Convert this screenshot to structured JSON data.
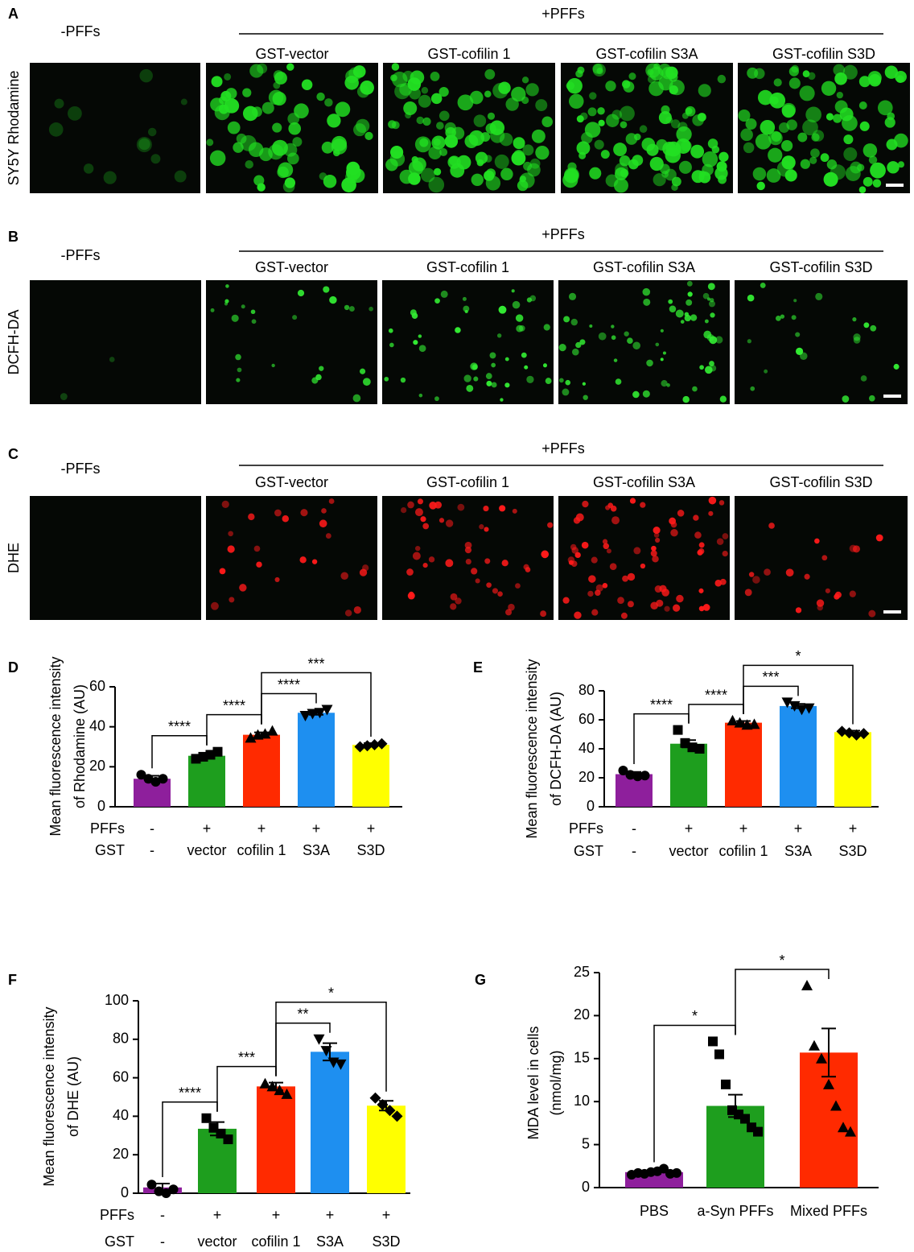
{
  "image_panels": [
    {
      "letter": "A",
      "row_label": "SY5Y Rhodamine",
      "control": "-PFFs",
      "treated": "+PFFs",
      "columns": [
        "GST-vector",
        "GST-cofilin 1",
        "GST-cofilin S3A",
        "GST-cofilin S3D"
      ],
      "color": "#22e022"
    },
    {
      "letter": "B",
      "row_label": "DCFH-DA",
      "control": "-PFFs",
      "treated": "+PFFs",
      "columns": [
        "GST-vector",
        "GST-cofilin 1",
        "GST-cofilin S3A",
        "GST-cofilin S3D"
      ],
      "color": "#33ee33"
    },
    {
      "letter": "C",
      "row_label": "DHE",
      "control": "-PFFs",
      "treated": "+PFFs",
      "columns": [
        "GST-vector",
        "GST-cofilin 1",
        "GST-cofilin S3A",
        "GST-cofilin S3D"
      ],
      "color": "#ff1a1a"
    }
  ],
  "chart_data": [
    {
      "type": "bar",
      "letter": "D",
      "ylabel": [
        "Mean fluorescence intensity",
        "of Rhodamine (AU)"
      ],
      "ylim": [
        0,
        60
      ],
      "yticks": [
        0,
        20,
        40,
        60
      ],
      "colors": [
        "#8e1f9c",
        "#1e9e1e",
        "#ff2a00",
        "#1e8ff0",
        "#ffff00"
      ],
      "values": [
        14,
        25.5,
        36,
        47,
        31
      ],
      "errors": [
        1.5,
        1,
        1.2,
        1,
        0.8
      ],
      "points": [
        [
          16,
          14,
          12.5,
          14
        ],
        [
          24,
          25,
          26,
          27.5
        ],
        [
          34.5,
          36,
          36.5,
          38
        ],
        [
          45.5,
          46.5,
          47,
          48.5
        ],
        [
          30,
          30.5,
          31,
          31.5
        ]
      ],
      "markers": [
        "circle",
        "square",
        "triangle-up",
        "triangle-down",
        "diamond"
      ],
      "rows": [
        {
          "name": "PFFs",
          "labels": [
            "-",
            "+",
            "+",
            "+",
            "+"
          ]
        },
        {
          "name": "GST",
          "labels": [
            "-",
            "vector",
            "cofilin 1",
            "S3A",
            "S3D"
          ]
        }
      ],
      "brackets": [
        {
          "from": 0,
          "to": 1,
          "label": "****"
        },
        {
          "from": 1,
          "to": 2,
          "label": "****"
        },
        {
          "from": 2,
          "to": 3,
          "label": "****"
        },
        {
          "from": 2,
          "to": 4,
          "label": "***"
        }
      ]
    },
    {
      "type": "bar",
      "letter": "E",
      "ylabel": [
        "Mean fluorescence intensity",
        "of DCFH-DA (AU)"
      ],
      "ylim": [
        0,
        80
      ],
      "yticks": [
        0,
        20,
        40,
        60,
        80
      ],
      "colors": [
        "#8e1f9c",
        "#1e9e1e",
        "#ff2a00",
        "#1e8ff0",
        "#ffff00"
      ],
      "values": [
        22.5,
        43.5,
        58,
        69.5,
        51.5
      ],
      "errors": [
        1.5,
        2.5,
        1.2,
        1.5,
        1
      ],
      "points": [
        [
          25,
          22,
          21,
          21.5
        ],
        [
          53,
          44,
          41,
          40
        ],
        [
          59.5,
          58,
          56.5,
          57
        ],
        [
          72,
          69.5,
          67,
          68
        ],
        [
          52,
          51,
          49.5,
          50.5
        ]
      ],
      "markers": [
        "circle",
        "square",
        "triangle-up",
        "triangle-down",
        "diamond"
      ],
      "rows": [
        {
          "name": "PFFs",
          "labels": [
            "-",
            "+",
            "+",
            "+",
            "+"
          ]
        },
        {
          "name": "GST",
          "labels": [
            "-",
            "vector",
            "cofilin 1",
            "S3A",
            "S3D"
          ]
        }
      ],
      "brackets": [
        {
          "from": 0,
          "to": 1,
          "label": "****"
        },
        {
          "from": 1,
          "to": 2,
          "label": "****"
        },
        {
          "from": 2,
          "to": 3,
          "label": "***"
        },
        {
          "from": 2,
          "to": 4,
          "label": "*"
        }
      ]
    },
    {
      "type": "bar",
      "letter": "F",
      "ylabel": [
        "Mean fluorescence intensity",
        "of DHE (AU)"
      ],
      "ylim": [
        0,
        100
      ],
      "yticks": [
        0,
        20,
        40,
        60,
        80,
        100
      ],
      "colors": [
        "#8e1f9c",
        "#1e9e1e",
        "#ff2a00",
        "#1e8ff0",
        "#ffff00"
      ],
      "values": [
        3,
        33.5,
        55.5,
        73.5,
        45.5
      ],
      "errors": [
        2,
        3.5,
        2,
        4.5,
        2.5
      ],
      "points": [
        [
          4.5,
          1,
          0,
          2
        ],
        [
          39,
          34,
          31,
          28
        ],
        [
          57,
          55.5,
          53.5,
          51.5
        ],
        [
          80,
          74,
          68,
          67
        ],
        [
          49.5,
          46,
          43,
          40
        ]
      ],
      "markers": [
        "circle",
        "square",
        "triangle-up",
        "triangle-down",
        "diamond"
      ],
      "rows": [
        {
          "name": "PFFs",
          "labels": [
            "-",
            "+",
            "+",
            "+",
            "+"
          ]
        },
        {
          "name": "GST",
          "labels": [
            "-",
            "vector",
            "cofilin 1",
            "S3A",
            "S3D"
          ]
        }
      ],
      "brackets": [
        {
          "from": 0,
          "to": 1,
          "label": "****"
        },
        {
          "from": 1,
          "to": 2,
          "label": "***"
        },
        {
          "from": 2,
          "to": 3,
          "label": "**"
        },
        {
          "from": 2,
          "to": 4,
          "label": "*"
        }
      ]
    },
    {
      "type": "bar",
      "letter": "G",
      "ylabel": [
        "MDA level in cells",
        "(nmol/mg)"
      ],
      "ylim": [
        0,
        25
      ],
      "yticks": [
        0,
        5,
        10,
        15,
        20,
        25
      ],
      "colors": [
        "#8e1f9c",
        "#1e9e1e",
        "#ff2a00"
      ],
      "values": [
        1.8,
        9.5,
        15.7
      ],
      "errors": [
        0.2,
        1.3,
        2.8
      ],
      "points": [
        [
          1.5,
          1.7,
          1.6,
          1.8,
          1.9,
          2.2,
          1.6,
          1.7
        ],
        [
          17,
          15.5,
          12,
          9,
          8.5,
          8,
          7,
          6.5
        ],
        [
          23.5,
          16.5,
          15,
          12,
          9.5,
          7,
          6.5
        ]
      ],
      "markers": [
        "circle",
        "square",
        "triangle-up"
      ],
      "categories": [
        "PBS",
        "a-Syn PFFs",
        "Mixed PFFs"
      ],
      "brackets": [
        {
          "from": 0,
          "to": 1,
          "label": "*"
        },
        {
          "from": 1,
          "to": 2,
          "label": "*"
        }
      ]
    }
  ]
}
